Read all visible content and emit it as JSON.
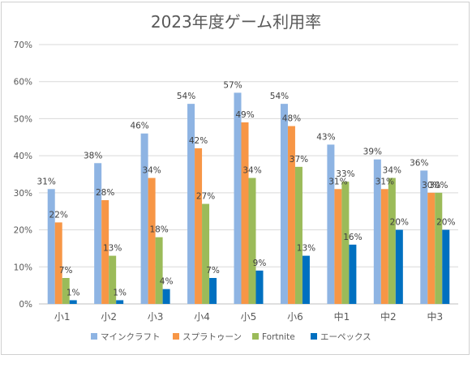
{
  "chart_data": {
    "type": "bar",
    "title": "2023年度ゲーム利用率",
    "categories": [
      "小1",
      "小2",
      "小3",
      "小4",
      "小5",
      "小6",
      "中1",
      "中2",
      "中3"
    ],
    "series": [
      {
        "name": "マインクラフト",
        "color": "#8eb4e3",
        "values": [
          31,
          38,
          46,
          54,
          57,
          54,
          43,
          39,
          36
        ],
        "labels": [
          "31%",
          "38%",
          "46%",
          "54%",
          "57%",
          "54%",
          "43%",
          "39%",
          "36%"
        ]
      },
      {
        "name": "スプラトゥーン",
        "color": "#f79646",
        "values": [
          22,
          28,
          34,
          42,
          49,
          48,
          31,
          31,
          30
        ],
        "labels": [
          "22%",
          "28%",
          "34%",
          "42%",
          "49%",
          "48%",
          "31%",
          "31%",
          "30%"
        ]
      },
      {
        "name": "Fortnite",
        "color": "#9bbb59",
        "values": [
          7,
          13,
          18,
          27,
          34,
          37,
          33,
          34,
          30
        ],
        "labels": [
          "7%",
          "13%",
          "18%",
          "27%",
          "34%",
          "37%",
          "33%",
          "34%",
          "30%"
        ]
      },
      {
        "name": "エーペックス",
        "color": "#0070c0",
        "values": [
          1,
          1,
          4,
          7,
          9,
          13,
          16,
          20,
          20
        ],
        "labels": [
          "1%",
          "1%",
          "4%",
          "7%",
          "9%",
          "13%",
          "16%",
          "20%",
          "20%"
        ]
      }
    ],
    "ylim": [
      0,
      70
    ],
    "yticks": [
      "0%",
      "10%",
      "20%",
      "30%",
      "40%",
      "50%",
      "60%",
      "70%"
    ],
    "grid": true,
    "legend": "bottom"
  }
}
